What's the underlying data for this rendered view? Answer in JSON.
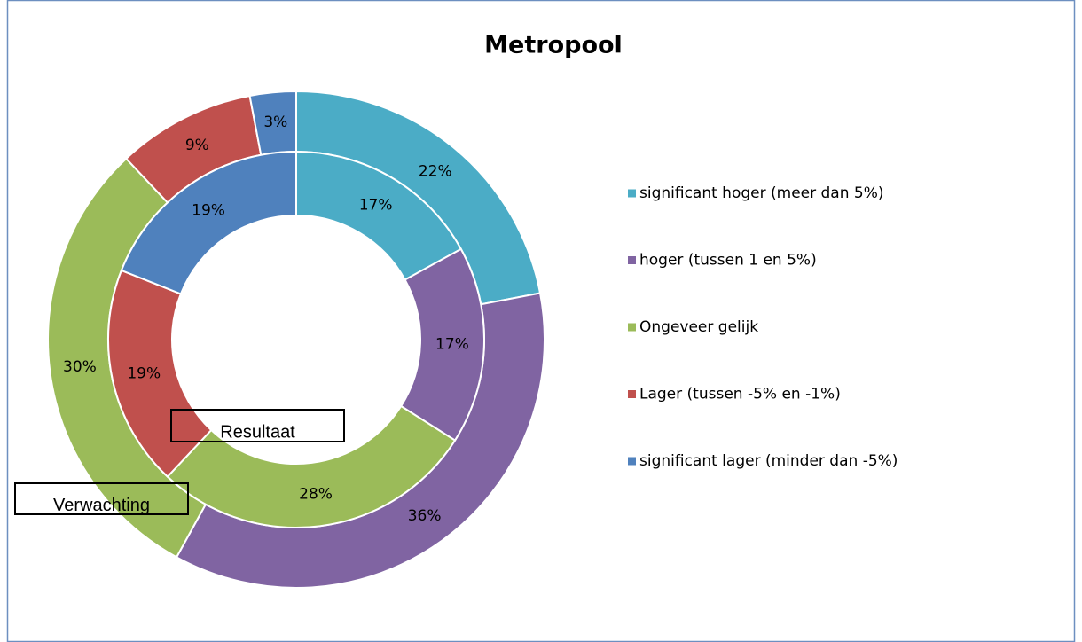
{
  "chart_data": {
    "type": "doughnut",
    "title": "Metropool",
    "categories": [
      "significant hoger (meer dan 5%)",
      "hoger (tussen 1 en 5%)",
      "Ongeveer gelijk",
      "Lager (tussen -5% en -1%)",
      "significant lager (minder dan -5%)"
    ],
    "colors": [
      "#4bacc6",
      "#8064a2",
      "#9bbb59",
      "#c0504d",
      "#4f81bd"
    ],
    "series": [
      {
        "name": "Verwachting",
        "values": [
          22,
          36,
          30,
          9,
          3
        ],
        "value_labels": [
          "22%",
          "36%",
          "30%",
          "9%",
          "3%"
        ]
      },
      {
        "name": "Resultaat",
        "values": [
          17,
          17,
          28,
          19,
          19
        ],
        "value_labels": [
          "17%",
          "17%",
          "28%",
          "19%",
          "19%"
        ]
      }
    ],
    "legend": "right"
  }
}
